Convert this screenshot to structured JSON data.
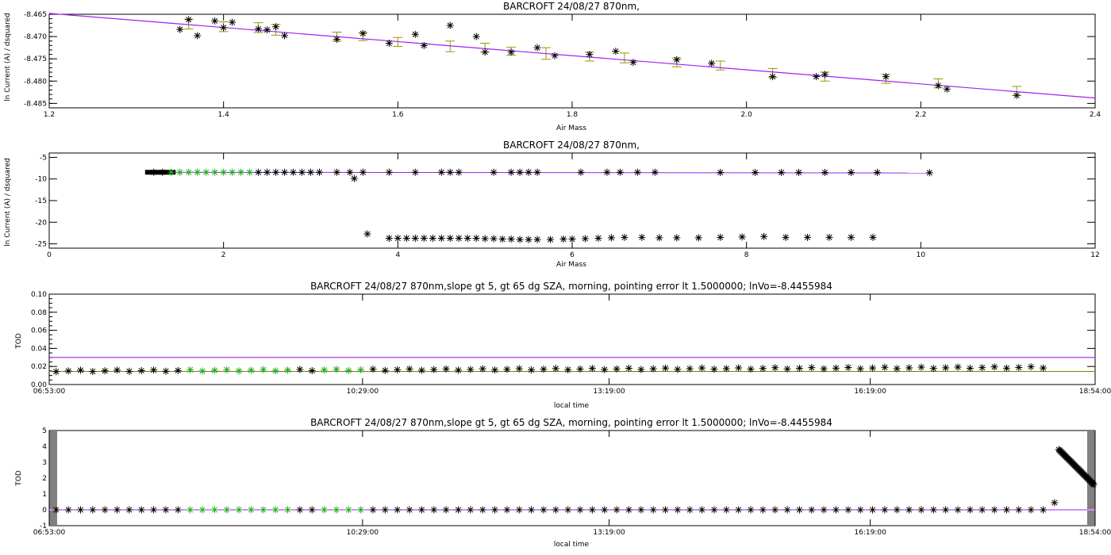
{
  "colors": {
    "axis": "#000000",
    "fit": "#a020f0",
    "errorbar": "#999900",
    "highlight": "#22aa22",
    "marker": "#000000",
    "olive": "#808000"
  },
  "chart_data": [
    {
      "type": "scatter",
      "title": "BARCROFT 24/08/27 870nm,",
      "xlabel": "Air Mass",
      "ylabel": "ln Current (A) / dsquared",
      "xlim": [
        1.2,
        2.4
      ],
      "ylim": [
        -8.486,
        -8.465
      ],
      "xticks": [
        "1.2",
        "1.4",
        "1.6",
        "1.8",
        "2.0",
        "2.2",
        "2.4"
      ],
      "xtick_values": [
        1.2,
        1.4,
        1.6,
        1.8,
        2.0,
        2.2,
        2.4
      ],
      "yticks": [
        "-8.485",
        "-8.480",
        "-8.475",
        "-8.470",
        "-8.465"
      ],
      "ytick_values": [
        -8.485,
        -8.48,
        -8.475,
        -8.47,
        -8.465
      ],
      "fit_line": [
        [
          1.2,
          -8.4648
        ],
        [
          2.4,
          -8.4838
        ]
      ],
      "points": [
        [
          1.35,
          -8.4684
        ],
        [
          1.36,
          -8.4662
        ],
        [
          1.37,
          -8.4698
        ],
        [
          1.39,
          -8.4665
        ],
        [
          1.4,
          -8.468
        ],
        [
          1.41,
          -8.4668
        ],
        [
          1.44,
          -8.4683
        ],
        [
          1.45,
          -8.4685
        ],
        [
          1.46,
          -8.4678
        ],
        [
          1.47,
          -8.4698
        ],
        [
          1.53,
          -8.4706
        ],
        [
          1.56,
          -8.4693
        ],
        [
          1.59,
          -8.4715
        ],
        [
          1.62,
          -8.4695
        ],
        [
          1.63,
          -8.472
        ],
        [
          1.66,
          -8.4675
        ],
        [
          1.69,
          -8.47
        ],
        [
          1.7,
          -8.4735
        ],
        [
          1.73,
          -8.4735
        ],
        [
          1.76,
          -8.4725
        ],
        [
          1.78,
          -8.4743
        ],
        [
          1.82,
          -8.474
        ],
        [
          1.85,
          -8.4733
        ],
        [
          1.87,
          -8.4758
        ],
        [
          1.92,
          -8.4752
        ],
        [
          1.96,
          -8.476
        ],
        [
          2.03,
          -8.479
        ],
        [
          2.08,
          -8.479
        ],
        [
          2.09,
          -8.4785
        ],
        [
          2.16,
          -8.479
        ],
        [
          2.22,
          -8.481
        ],
        [
          2.23,
          -8.4818
        ],
        [
          2.31,
          -8.4832
        ]
      ],
      "error_bars": [
        [
          1.36,
          -8.4672,
          0.0011
        ],
        [
          1.4,
          -8.4678,
          0.0011
        ],
        [
          1.44,
          -8.468,
          0.0011
        ],
        [
          1.46,
          -8.4685,
          0.0012
        ],
        [
          1.53,
          -8.47,
          0.001
        ],
        [
          1.56,
          -8.47,
          0.0009
        ],
        [
          1.6,
          -8.4712,
          0.001
        ],
        [
          1.66,
          -8.4722,
          0.0012
        ],
        [
          1.7,
          -8.4725,
          0.001
        ],
        [
          1.73,
          -8.4733,
          0.0009
        ],
        [
          1.77,
          -8.4738,
          0.0013
        ],
        [
          1.82,
          -8.4745,
          0.001
        ],
        [
          1.86,
          -8.4748,
          0.0011
        ],
        [
          1.92,
          -8.4758,
          0.001
        ],
        [
          1.97,
          -8.4765,
          0.001
        ],
        [
          2.03,
          -8.4782,
          0.001
        ],
        [
          2.09,
          -8.479,
          0.001
        ],
        [
          2.16,
          -8.4795,
          0.001
        ],
        [
          2.22,
          -8.4805,
          0.001
        ],
        [
          2.31,
          -8.4822,
          0.001
        ]
      ]
    },
    {
      "type": "scatter",
      "title": "BARCROFT 24/08/27 870nm,",
      "xlabel": "Air Mass",
      "ylabel": "ln Current (A) / dsquared",
      "xlim": [
        0,
        12
      ],
      "ylim": [
        -26,
        -4
      ],
      "xticks": [
        "0",
        "2",
        "4",
        "6",
        "8",
        "10",
        "12"
      ],
      "xtick_values": [
        0,
        2,
        4,
        6,
        8,
        10,
        12
      ],
      "yticks": [
        "-25",
        "-20",
        "-15",
        "-10",
        "-5"
      ],
      "ytick_values": [
        -25,
        -20,
        -15,
        -10,
        -5
      ],
      "fit_line": [
        [
          1.1,
          -8.45
        ],
        [
          10.1,
          -8.6
        ]
      ],
      "upper_points": [
        [
          1.2,
          -8.45
        ],
        [
          1.3,
          -8.45
        ],
        [
          1.4,
          -8.45
        ],
        [
          1.5,
          -8.45
        ],
        [
          1.6,
          -8.45
        ],
        [
          1.7,
          -8.45
        ],
        [
          1.8,
          -8.45
        ],
        [
          1.9,
          -8.45
        ],
        [
          2.0,
          -8.45
        ],
        [
          2.1,
          -8.45
        ],
        [
          2.2,
          -8.45
        ],
        [
          2.3,
          -8.45
        ],
        [
          2.4,
          -8.45
        ],
        [
          2.5,
          -8.45
        ],
        [
          2.6,
          -8.45
        ],
        [
          2.7,
          -8.45
        ],
        [
          2.8,
          -8.45
        ],
        [
          2.9,
          -8.45
        ],
        [
          3.0,
          -8.45
        ],
        [
          3.1,
          -8.45
        ],
        [
          3.3,
          -8.45
        ],
        [
          3.45,
          -8.45
        ],
        [
          3.5,
          -9.9
        ],
        [
          3.6,
          -8.45
        ],
        [
          3.9,
          -8.45
        ],
        [
          4.2,
          -8.45
        ],
        [
          4.5,
          -8.45
        ],
        [
          4.6,
          -8.45
        ],
        [
          4.7,
          -8.45
        ],
        [
          5.1,
          -8.45
        ],
        [
          5.3,
          -8.45
        ],
        [
          5.4,
          -8.45
        ],
        [
          5.5,
          -8.45
        ],
        [
          5.6,
          -8.45
        ],
        [
          6.1,
          -8.45
        ],
        [
          6.4,
          -8.45
        ],
        [
          6.55,
          -8.45
        ],
        [
          6.75,
          -8.45
        ],
        [
          6.95,
          -8.45
        ],
        [
          7.7,
          -8.5
        ],
        [
          8.1,
          -8.5
        ],
        [
          8.4,
          -8.5
        ],
        [
          8.6,
          -8.5
        ],
        [
          8.9,
          -8.5
        ],
        [
          9.2,
          -8.5
        ],
        [
          9.5,
          -8.5
        ],
        [
          10.1,
          -8.55
        ]
      ],
      "lower_points": [
        [
          3.65,
          -22.7
        ],
        [
          3.9,
          -23.7
        ],
        [
          4.0,
          -23.7
        ],
        [
          4.1,
          -23.7
        ],
        [
          4.2,
          -23.7
        ],
        [
          4.3,
          -23.7
        ],
        [
          4.4,
          -23.7
        ],
        [
          4.5,
          -23.7
        ],
        [
          4.6,
          -23.7
        ],
        [
          4.7,
          -23.7
        ],
        [
          4.8,
          -23.7
        ],
        [
          4.9,
          -23.7
        ],
        [
          5.0,
          -23.8
        ],
        [
          5.1,
          -23.8
        ],
        [
          5.2,
          -23.9
        ],
        [
          5.3,
          -23.9
        ],
        [
          5.4,
          -24.0
        ],
        [
          5.5,
          -24.0
        ],
        [
          5.6,
          -24.0
        ],
        [
          5.75,
          -24.0
        ],
        [
          5.9,
          -23.9
        ],
        [
          6.0,
          -23.9
        ],
        [
          6.15,
          -23.8
        ],
        [
          6.3,
          -23.7
        ],
        [
          6.45,
          -23.6
        ],
        [
          6.6,
          -23.5
        ],
        [
          6.8,
          -23.5
        ],
        [
          7.0,
          -23.6
        ],
        [
          7.2,
          -23.6
        ],
        [
          7.45,
          -23.6
        ],
        [
          7.7,
          -23.5
        ],
        [
          7.95,
          -23.4
        ],
        [
          8.2,
          -23.3
        ],
        [
          8.45,
          -23.5
        ],
        [
          8.7,
          -23.5
        ],
        [
          8.95,
          -23.5
        ],
        [
          9.2,
          -23.5
        ],
        [
          9.45,
          -23.5
        ]
      ]
    },
    {
      "type": "scatter",
      "title": "BARCROFT 24/08/27 870nm,slope gt 5, gt 65 dg SZA, morning, pointing error lt 1.5000000; lnVo=-8.4455984",
      "xlabel": "local time",
      "ylabel": "TOD",
      "xlim": [
        "06:53:00",
        "18:54:00"
      ],
      "ylim": [
        0,
        0.1
      ],
      "xticks": [
        "06:53:00",
        "10:29:00",
        "13:19:00",
        "16:19:00",
        "18:54:00"
      ],
      "xtick_values": [
        0,
        3.6,
        6.433,
        9.433,
        12.017
      ],
      "yticks": [
        "0.00",
        "0.02",
        "0.04",
        "0.06",
        "0.08",
        "0.10"
      ],
      "ytick_values": [
        0,
        0.02,
        0.04,
        0.06,
        0.08,
        0.1
      ],
      "hline_upper": 0.03,
      "hline_lower": 0.0145,
      "series": {
        "start_hours": 0.08,
        "end_hours": 11.5,
        "step_hours": 0.14,
        "green_ranges": [
          [
            1.6,
            2.8
          ],
          [
            3.1,
            3.7
          ]
        ],
        "value_start": 0.015,
        "value_end": 0.019
      }
    },
    {
      "type": "scatter",
      "title": "BARCROFT 24/08/27 870nm,slope gt 5, gt 65 dg SZA, morning, pointing error lt 1.5000000; lnVo=-8.4455984",
      "xlabel": "local time",
      "ylabel": "TOD",
      "xlim": [
        "06:53:00",
        "18:54:00"
      ],
      "ylim": [
        -1,
        5
      ],
      "xticks": [
        "06:53:00",
        "10:29:00",
        "13:19:00",
        "16:19:00",
        "18:54:00"
      ],
      "xtick_values": [
        0,
        3.6,
        6.433,
        9.433,
        12.017
      ],
      "yticks": [
        "-1",
        "0",
        "1",
        "2",
        "3",
        "4",
        "5"
      ],
      "ytick_values": [
        -1,
        0,
        1,
        2,
        3,
        4,
        5
      ],
      "hline": 0.0,
      "series": {
        "start_hours": 0.08,
        "end_hours": 11.5,
        "step_hours": 0.14,
        "green_ranges": [
          [
            1.6,
            2.8
          ],
          [
            3.1,
            3.7
          ]
        ],
        "value": 0.0
      },
      "outlier": [
        11.55,
        0.45
      ],
      "tail": {
        "start": [
          11.6,
          3.8
        ],
        "end": [
          12.0,
          1.6
        ]
      }
    }
  ]
}
